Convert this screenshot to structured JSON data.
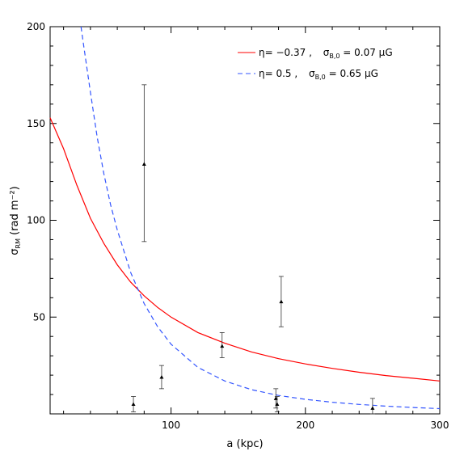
{
  "chart_data": {
    "type": "line",
    "xlabel": "a (kpc)",
    "ylabel": {
      "symbol": "σ",
      "subscript": "RM",
      "rest": "(rad m⁻²)"
    },
    "xlim": [
      10,
      300
    ],
    "ylim": [
      0,
      200
    ],
    "xticks": [
      100,
      200,
      300
    ],
    "yticks": [
      50,
      100,
      150,
      200
    ],
    "grid": false,
    "legend_position": "top-right",
    "series": [
      {
        "eta": "η= −0.37 ,",
        "sigma_label": "σ",
        "sigma_sub": "B,0",
        "sigma_value": "= 0.07 μG",
        "style": "solid",
        "color": "#ff0000",
        "x": [
          10,
          15,
          20,
          30,
          40,
          50,
          60,
          70,
          80,
          90,
          100,
          120,
          140,
          160,
          180,
          200,
          220,
          240,
          260,
          280,
          300
        ],
        "y": [
          153,
          145,
          137,
          118,
          101,
          88,
          77,
          68,
          61,
          55,
          50,
          42,
          36.5,
          32,
          28.5,
          25.8,
          23.5,
          21.5,
          19.8,
          18.4,
          17
        ]
      },
      {
        "eta": "η= 0.5 ,",
        "sigma_label": "σ",
        "sigma_sub": "B,0",
        "sigma_value": "= 0.65 μG",
        "style": "dashed",
        "color": "#3355ff",
        "x": [
          33,
          35,
          40,
          45,
          50,
          55,
          60,
          70,
          80,
          90,
          100,
          120,
          140,
          160,
          180,
          200,
          220,
          240,
          260,
          280,
          300
        ],
        "y": [
          200,
          190,
          166,
          143,
          124,
          108,
          95,
          73,
          57,
          45,
          36,
          24,
          17,
          12.5,
          9.5,
          7.5,
          6.0,
          4.9,
          4.0,
          3.3,
          2.7
        ]
      }
    ],
    "points": [
      {
        "x": 72,
        "y": 5,
        "yerr": [
          1,
          9
        ]
      },
      {
        "x": 80,
        "y": 129,
        "yerr": [
          89,
          170
        ]
      },
      {
        "x": 93,
        "y": 19,
        "yerr": [
          13,
          25
        ]
      },
      {
        "x": 138,
        "y": 35,
        "yerr": [
          29,
          42
        ]
      },
      {
        "x": 178,
        "y": 8,
        "yerr": [
          3,
          13
        ]
      },
      {
        "x": 179,
        "y": 5,
        "yerr": [
          1,
          9
        ]
      },
      {
        "x": 182,
        "y": 58,
        "yerr": [
          45,
          71
        ]
      },
      {
        "x": 250,
        "y": 3,
        "yerr": [
          0,
          8
        ]
      }
    ]
  }
}
